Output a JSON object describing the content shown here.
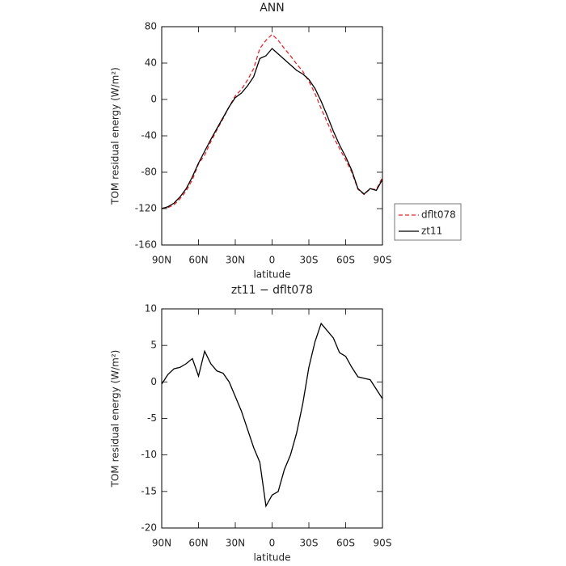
{
  "chart_data": [
    {
      "type": "line",
      "title": "ANN",
      "x_label": "latitude",
      "y_label": "TOM residual energy (W/m²)",
      "x": [
        90,
        85,
        80,
        75,
        70,
        65,
        60,
        55,
        50,
        45,
        40,
        35,
        30,
        25,
        20,
        15,
        10,
        5,
        0,
        -5,
        -10,
        -15,
        -20,
        -25,
        -30,
        -35,
        -40,
        -45,
        -50,
        -55,
        -60,
        -65,
        -70,
        -75,
        -80,
        -85,
        -90
      ],
      "series": [
        {
          "name": "dflt078",
          "color": "#e8262a",
          "dash": true,
          "values": [
            -119.7,
            -119,
            -115.8,
            -109,
            -100.5,
            -88.2,
            -70.8,
            -61.2,
            -46.5,
            -33.5,
            -21.2,
            -8,
            4,
            11,
            21.5,
            34,
            56,
            65,
            71.5,
            65,
            56,
            48,
            39,
            31,
            20,
            6.5,
            -10,
            -25,
            -41,
            -54,
            -66.5,
            -80,
            -98.7,
            -104.5,
            -98.3,
            -99,
            -85.7
          ]
        },
        {
          "name": "zt11",
          "color": "#000000",
          "dash": false,
          "values": [
            -120,
            -118,
            -114,
            -107,
            -98,
            -85,
            -70,
            -57,
            -44,
            -32,
            -20,
            -8,
            2,
            7,
            15,
            25,
            45,
            48,
            56,
            50,
            44,
            38,
            32,
            28,
            22,
            12,
            -2,
            -18,
            -35,
            -50,
            -63,
            -78,
            -98,
            -104,
            -98,
            -100,
            -88
          ]
        }
      ],
      "xlim": [
        90,
        -90
      ],
      "xticks": [
        {
          "value": 90,
          "label": "90N"
        },
        {
          "value": 60,
          "label": "60N"
        },
        {
          "value": 30,
          "label": "30N"
        },
        0,
        {
          "value": -30,
          "label": "30S"
        },
        {
          "value": -60,
          "label": "60S"
        },
        {
          "value": -90,
          "label": "90S"
        }
      ],
      "ylim": [
        -160,
        80
      ],
      "yticks": [
        80,
        40,
        0,
        -40,
        -80,
        -120,
        -160
      ],
      "legend": "outside lower right"
    },
    {
      "type": "line",
      "title": "zt11 − dflt078",
      "x_label": "latitude",
      "y_label": "TOM residual energy (W/m²)",
      "x": [
        90,
        85,
        80,
        75,
        70,
        65,
        60,
        55,
        50,
        45,
        40,
        35,
        30,
        25,
        20,
        15,
        10,
        5,
        0,
        -5,
        -10,
        -15,
        -20,
        -25,
        -30,
        -35,
        -40,
        -45,
        -50,
        -55,
        -60,
        -65,
        -70,
        -75,
        -80,
        -85,
        -90
      ],
      "values": [
        -0.3,
        1,
        1.8,
        2,
        2.5,
        3.2,
        0.8,
        4.2,
        2.5,
        1.5,
        1.2,
        0,
        -2,
        -4,
        -6.5,
        -9,
        -11,
        -17,
        -15.5,
        -15,
        -12,
        -10,
        -7,
        -3,
        2,
        5.5,
        8,
        7,
        6,
        4,
        3.5,
        2,
        0.7,
        0.5,
        0.3,
        -1,
        -2.3
      ],
      "color": "#000000",
      "xlim": [
        90,
        -90
      ],
      "xticks": [
        {
          "value": 90,
          "label": "90N"
        },
        {
          "value": 60,
          "label": "60N"
        },
        {
          "value": 30,
          "label": "30N"
        },
        0,
        {
          "value": -30,
          "label": "30S"
        },
        {
          "value": -60,
          "label": "60S"
        },
        {
          "value": -90,
          "label": "90S"
        }
      ],
      "ylim": [
        -20,
        10
      ],
      "yticks": [
        10,
        5,
        0,
        -5,
        -10,
        -15,
        -20
      ]
    }
  ]
}
